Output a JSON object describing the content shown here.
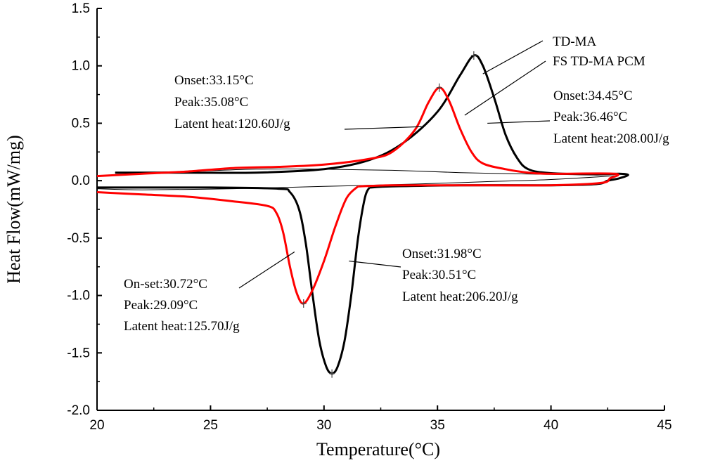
{
  "chart_data": {
    "type": "line",
    "title": "",
    "xlabel": "Temperature(°C)",
    "ylabel": "Heat Flow(mW/mg)",
    "xlim": [
      20,
      45
    ],
    "ylim": [
      -2.0,
      1.5
    ],
    "x_ticks": [
      "20",
      "25",
      "30",
      "35",
      "40",
      "45"
    ],
    "y_ticks": [
      "1.5",
      "1.0",
      "0.5",
      "0.0",
      "-0.5",
      "-1.0",
      "-1.5",
      "-2.0"
    ],
    "grid": false,
    "series": [
      {
        "name": "TD-MA",
        "color": "#000000",
        "heating": [
          [
            20.8,
            0.07
          ],
          [
            24.0,
            0.07
          ],
          [
            27.0,
            0.07
          ],
          [
            30.0,
            0.1
          ],
          [
            32.0,
            0.18
          ],
          [
            33.5,
            0.33
          ],
          [
            35.0,
            0.6
          ],
          [
            36.0,
            0.92
          ],
          [
            36.6,
            1.09
          ],
          [
            37.0,
            1.0
          ],
          [
            37.5,
            0.72
          ],
          [
            38.0,
            0.4
          ],
          [
            38.5,
            0.2
          ],
          [
            39.0,
            0.1
          ],
          [
            40.0,
            0.065
          ],
          [
            42.0,
            0.055
          ],
          [
            43.0,
            0.06
          ],
          [
            43.4,
            0.05
          ],
          [
            43.0,
            0.02
          ],
          [
            42.5,
            0.0
          ],
          [
            42.0,
            -0.03
          ],
          [
            40.0,
            -0.04
          ],
          [
            36.0,
            -0.04
          ],
          [
            33.0,
            -0.05
          ],
          [
            32.0,
            -0.06
          ]
        ],
        "cooling": [
          [
            32.0,
            -0.06
          ],
          [
            31.8,
            -0.15
          ],
          [
            31.5,
            -0.5
          ],
          [
            31.2,
            -1.0
          ],
          [
            30.9,
            -1.4
          ],
          [
            30.6,
            -1.62
          ],
          [
            30.35,
            -1.68
          ],
          [
            30.1,
            -1.62
          ],
          [
            29.8,
            -1.4
          ],
          [
            29.5,
            -1.0
          ],
          [
            29.2,
            -0.55
          ],
          [
            28.9,
            -0.25
          ],
          [
            28.5,
            -0.1
          ],
          [
            28.0,
            -0.07
          ],
          [
            25.0,
            -0.06
          ],
          [
            20.0,
            -0.06
          ]
        ]
      },
      {
        "name": "FS TD-MA PCM",
        "color": "#ff0000",
        "heating": [
          [
            20.0,
            0.04
          ],
          [
            22.0,
            0.06
          ],
          [
            24.0,
            0.08
          ],
          [
            26.0,
            0.11
          ],
          [
            28.0,
            0.12
          ],
          [
            30.0,
            0.14
          ],
          [
            32.0,
            0.19
          ],
          [
            33.0,
            0.25
          ],
          [
            34.0,
            0.44
          ],
          [
            34.6,
            0.68
          ],
          [
            35.08,
            0.81
          ],
          [
            35.5,
            0.7
          ],
          [
            36.0,
            0.45
          ],
          [
            36.5,
            0.25
          ],
          [
            37.0,
            0.15
          ],
          [
            38.0,
            0.1
          ],
          [
            39.0,
            0.07
          ],
          [
            40.0,
            0.06
          ],
          [
            42.8,
            0.06
          ],
          [
            42.6,
            0.02
          ],
          [
            42.2,
            -0.02
          ],
          [
            40.0,
            -0.04
          ],
          [
            36.0,
            -0.04
          ],
          [
            33.0,
            -0.04
          ],
          [
            31.5,
            -0.05
          ]
        ],
        "cooling": [
          [
            31.5,
            -0.05
          ],
          [
            31.0,
            -0.15
          ],
          [
            30.5,
            -0.4
          ],
          [
            30.0,
            -0.7
          ],
          [
            29.5,
            -0.95
          ],
          [
            29.1,
            -1.07
          ],
          [
            28.8,
            -0.98
          ],
          [
            28.5,
            -0.75
          ],
          [
            28.2,
            -0.45
          ],
          [
            27.9,
            -0.28
          ],
          [
            27.5,
            -0.22
          ],
          [
            26.0,
            -0.18
          ],
          [
            24.0,
            -0.14
          ],
          [
            22.0,
            -0.12
          ],
          [
            20.0,
            -0.1
          ]
        ]
      }
    ],
    "thin_loop": [
      [
        20.8,
        0.07
      ],
      [
        24.0,
        0.08
      ],
      [
        27.0,
        0.1
      ],
      [
        30.0,
        0.1
      ],
      [
        33.0,
        0.09
      ],
      [
        36.0,
        0.07
      ],
      [
        40.0,
        0.055
      ],
      [
        43.0,
        0.05
      ],
      [
        40.0,
        0.01
      ],
      [
        37.0,
        -0.01
      ],
      [
        34.0,
        -0.03
      ],
      [
        30.0,
        -0.05
      ],
      [
        26.0,
        -0.07
      ],
      [
        22.0,
        -0.08
      ],
      [
        20.0,
        -0.07
      ]
    ],
    "peak_markers": [
      {
        "x": 36.6,
        "y": 1.09
      },
      {
        "x": 35.08,
        "y": 0.81
      },
      {
        "x": 30.35,
        "y": -1.68
      },
      {
        "x": 29.1,
        "y": -1.07
      }
    ],
    "legend": {
      "placement": "top-right",
      "entries": [
        {
          "label": "TD-MA",
          "target": {
            "x": 37.0,
            "y": 0.93
          }
        },
        {
          "label": "FS TD-MA PCM",
          "target": {
            "x": 36.2,
            "y": 0.57
          }
        }
      ]
    },
    "annotations": [
      {
        "lines": [
          "Onset:33.15°C",
          "Peak:35.08°C",
          "Latent heat:120.60J/g"
        ],
        "target": {
          "x": 34.3,
          "y": 0.47
        }
      },
      {
        "lines": [
          "Onset:34.45°C",
          "Peak:36.46°C",
          "Latent heat:208.00J/g"
        ],
        "target": {
          "x": 37.2,
          "y": 0.5
        }
      },
      {
        "lines": [
          "Onset:31.98°C",
          "Peak:30.51°C",
          "Latent heat:206.20J/g"
        ],
        "target": {
          "x": 31.1,
          "y": -0.7
        }
      },
      {
        "lines": [
          "On-set:30.72°C",
          "Peak:29.09°C",
          "Latent heat:125.70J/g"
        ],
        "target": {
          "x": 28.7,
          "y": -0.62
        }
      }
    ]
  }
}
